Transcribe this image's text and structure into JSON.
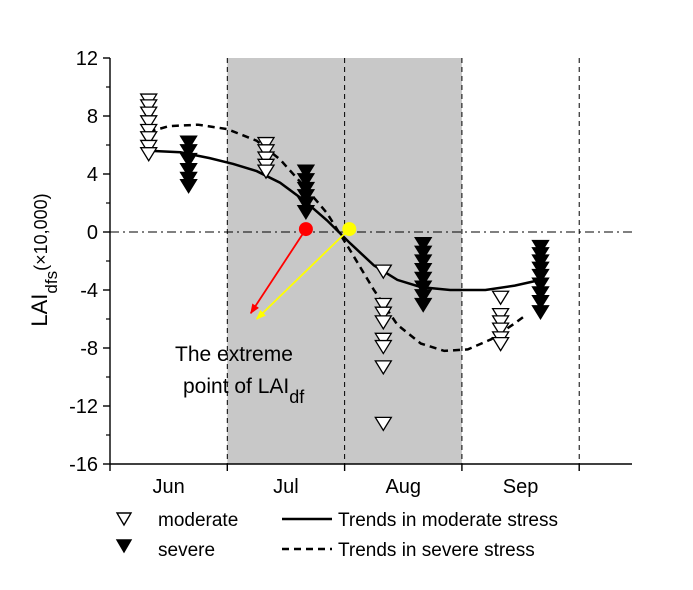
{
  "chart_data": {
    "type": "scatter",
    "title": "",
    "xlabel": "",
    "ylabel": {
      "main": "LAI",
      "sub": "dfs",
      "suffix": "(×10,000)"
    },
    "ylim": [
      -16,
      12
    ],
    "xlim": [
      0,
      4.45
    ],
    "y_ticks": [
      12,
      8,
      4,
      0,
      -4,
      -8,
      -12,
      -16
    ],
    "y_tick_labels": [
      "12",
      "8",
      "4",
      "0",
      "-4",
      "-8",
      "-12",
      "-16"
    ],
    "months": [
      {
        "label": "Jun",
        "center": 0.5
      },
      {
        "label": "Jul",
        "center": 1.5
      },
      {
        "label": "Aug",
        "center": 2.5
      },
      {
        "label": "Sep",
        "center": 3.5
      }
    ],
    "month_boundaries": [
      0,
      1,
      2,
      3,
      4
    ],
    "shaded_ranges": [
      [
        1,
        2
      ],
      [
        2,
        3
      ]
    ],
    "zero_line": 0,
    "series": [
      {
        "name": "moderate",
        "marker": "triangle-down-open",
        "points": [
          [
            0.33,
            9.1
          ],
          [
            0.33,
            8.7
          ],
          [
            0.33,
            8.2
          ],
          [
            0.33,
            7.6
          ],
          [
            0.33,
            7.0
          ],
          [
            0.33,
            6.5
          ],
          [
            0.33,
            5.9
          ],
          [
            0.33,
            5.4
          ],
          [
            1.33,
            6.1
          ],
          [
            1.33,
            5.6
          ],
          [
            1.33,
            5.1
          ],
          [
            1.33,
            4.6
          ],
          [
            1.33,
            4.2
          ],
          [
            2.33,
            -2.7
          ],
          [
            2.33,
            -5.0
          ],
          [
            2.33,
            -5.6
          ],
          [
            2.33,
            -6.2
          ],
          [
            2.33,
            -7.4
          ],
          [
            2.33,
            -7.9
          ],
          [
            2.33,
            -9.3
          ],
          [
            2.33,
            -13.2
          ],
          [
            3.33,
            -4.5
          ],
          [
            3.33,
            -5.7
          ],
          [
            3.33,
            -6.2
          ],
          [
            3.33,
            -6.7
          ],
          [
            3.33,
            -7.3
          ],
          [
            3.33,
            -7.7
          ]
        ]
      },
      {
        "name": "severe",
        "marker": "triangle-down-filled",
        "points": [
          [
            0.67,
            6.2
          ],
          [
            0.67,
            5.6
          ],
          [
            0.67,
            5.0
          ],
          [
            0.67,
            4.3
          ],
          [
            0.67,
            3.7
          ],
          [
            0.67,
            3.2
          ],
          [
            1.67,
            4.2
          ],
          [
            1.67,
            3.6
          ],
          [
            1.67,
            3.0
          ],
          [
            1.67,
            2.5
          ],
          [
            1.67,
            2.0
          ],
          [
            1.67,
            1.4
          ],
          [
            2.67,
            -0.8
          ],
          [
            2.67,
            -1.4
          ],
          [
            2.67,
            -2.0
          ],
          [
            2.67,
            -2.6
          ],
          [
            2.67,
            -3.2
          ],
          [
            2.67,
            -3.8
          ],
          [
            2.67,
            -4.4
          ],
          [
            2.67,
            -5.0
          ],
          [
            3.67,
            -1.0
          ],
          [
            3.67,
            -1.5
          ],
          [
            3.67,
            -2.0
          ],
          [
            3.67,
            -2.5
          ],
          [
            3.67,
            -3.0
          ],
          [
            3.67,
            -3.6
          ],
          [
            3.67,
            -4.2
          ],
          [
            3.67,
            -4.8
          ],
          [
            3.67,
            -5.5
          ]
        ]
      }
    ],
    "trend_lines": [
      {
        "name": "Trends in moderate stress",
        "style": "solid",
        "points": [
          [
            0.33,
            5.6
          ],
          [
            0.6,
            5.5
          ],
          [
            0.85,
            5.1
          ],
          [
            1.05,
            4.7
          ],
          [
            1.25,
            4.2
          ],
          [
            1.45,
            3.4
          ],
          [
            1.65,
            2.2
          ],
          [
            1.85,
            0.8
          ],
          [
            2.05,
            -0.8
          ],
          [
            2.25,
            -2.3
          ],
          [
            2.45,
            -3.3
          ],
          [
            2.65,
            -3.8
          ],
          [
            2.9,
            -4.0
          ],
          [
            3.2,
            -4.0
          ],
          [
            3.45,
            -3.7
          ],
          [
            3.67,
            -3.3
          ]
        ]
      },
      {
        "name": "Trends in severe stress",
        "style": "dashed",
        "points": [
          [
            0.33,
            6.9
          ],
          [
            0.5,
            7.3
          ],
          [
            0.75,
            7.4
          ],
          [
            1.0,
            7.1
          ],
          [
            1.25,
            6.3
          ],
          [
            1.45,
            5.0
          ],
          [
            1.65,
            3.2
          ],
          [
            1.85,
            1.3
          ],
          [
            2.05,
            -1.3
          ],
          [
            2.25,
            -4.0
          ],
          [
            2.45,
            -6.4
          ],
          [
            2.65,
            -7.7
          ],
          [
            2.85,
            -8.2
          ],
          [
            3.05,
            -8.1
          ],
          [
            3.25,
            -7.4
          ],
          [
            3.45,
            -6.3
          ],
          [
            3.55,
            -5.7
          ]
        ]
      }
    ],
    "extreme_points": [
      {
        "x": 1.67,
        "y": 0.2,
        "color": "#ff0000",
        "arrow_to": [
          1.2,
          -5.6
        ]
      },
      {
        "x": 2.04,
        "y": 0.2,
        "color": "#ffff00",
        "arrow_to": [
          1.25,
          -6.0
        ]
      }
    ],
    "annotation": {
      "line1": "The extreme",
      "line2_main": "point of LAI",
      "line2_sub": "df"
    },
    "legend": [
      {
        "marker": "triangle-down-open",
        "label": "moderate"
      },
      {
        "marker": "triangle-down-filled",
        "label": "severe"
      },
      {
        "line": "solid",
        "label": "Trends in moderate stress"
      },
      {
        "line": "dashed",
        "label": "Trends in severe stress"
      }
    ],
    "colors": {
      "shade": "#c8c8c8",
      "red": "#ff0000",
      "yellow": "#ffff00",
      "black": "#000000"
    }
  }
}
